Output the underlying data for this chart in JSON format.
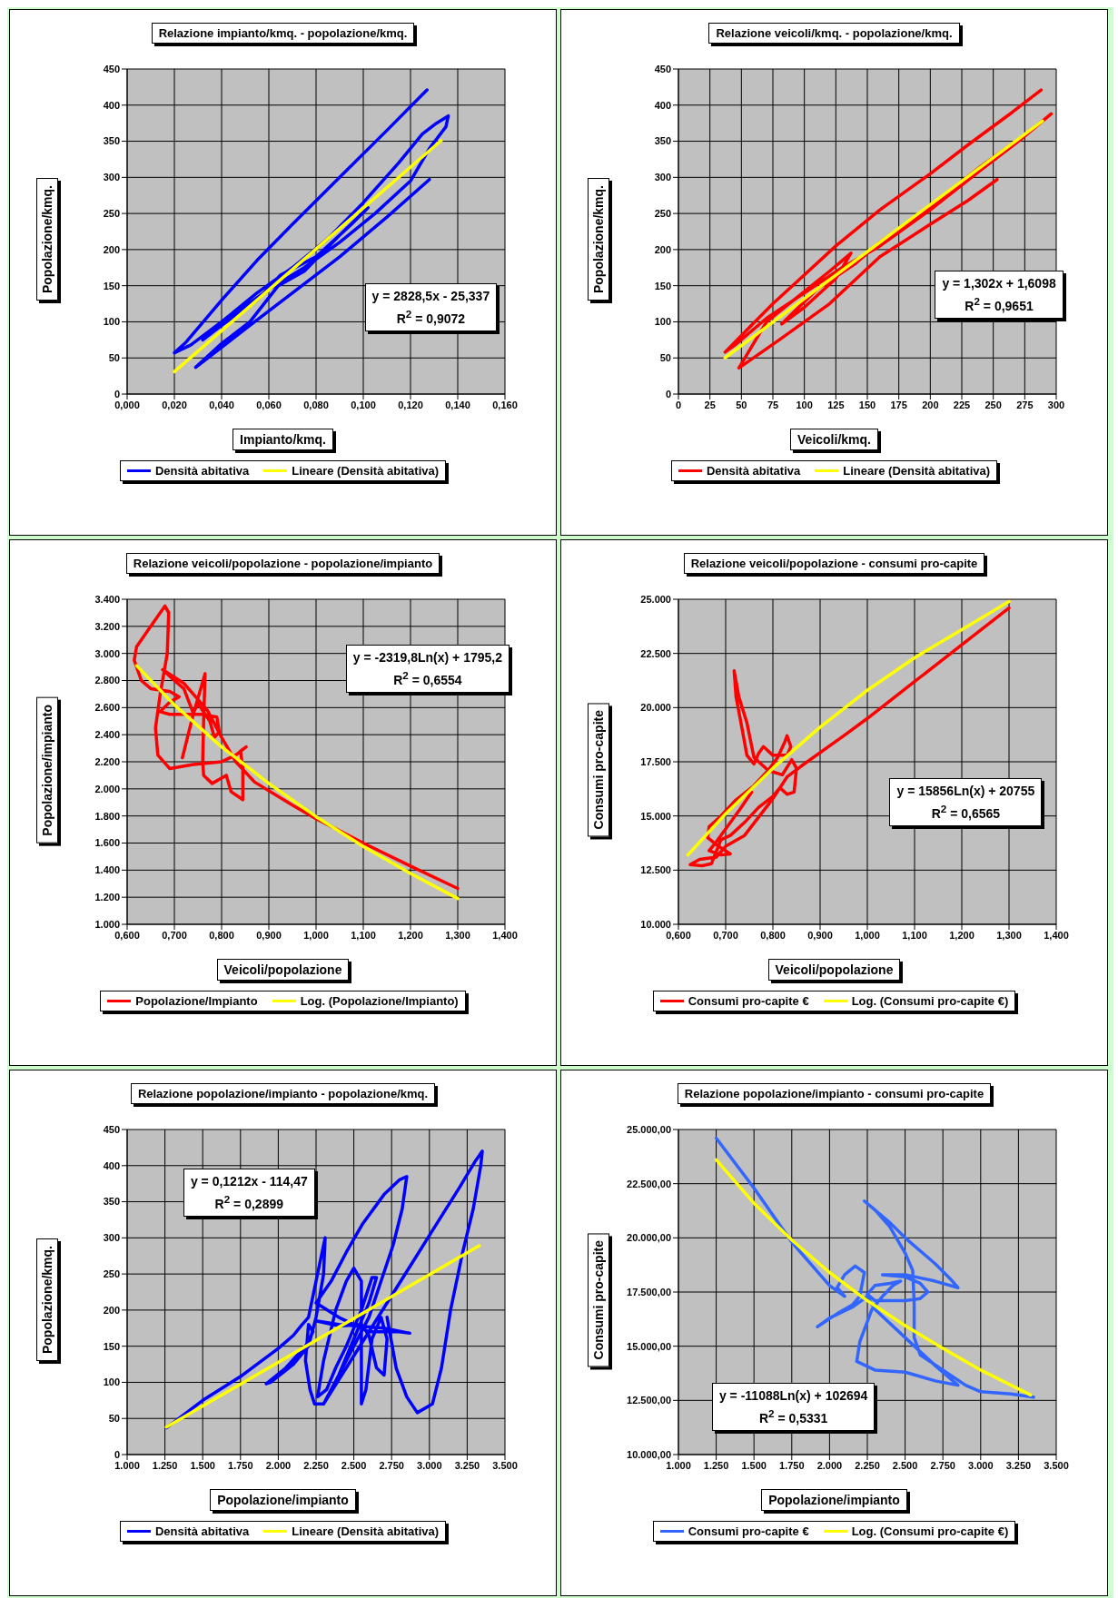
{
  "chart_data": [
    {
      "type": "line",
      "title": "Relazione impianto/kmq. - popolazione/kmq.",
      "xlabel": "Impianto/kmq.",
      "ylabel": "Popolazione/kmq.",
      "grid": true,
      "legend": "bottom",
      "marker": "none",
      "xlim": [
        0,
        0.16
      ],
      "xticks": [
        {
          "value": 0,
          "label": "0,000"
        },
        {
          "value": 0.02,
          "label": "0,020"
        },
        {
          "value": 0.04,
          "label": "0,040"
        },
        {
          "value": 0.06,
          "label": "0,060"
        },
        {
          "value": 0.08,
          "label": "0,080"
        },
        {
          "value": 0.1,
          "label": "0,100"
        },
        {
          "value": 0.12,
          "label": "0,120"
        },
        {
          "value": 0.14,
          "label": "0,140"
        },
        {
          "value": 0.16,
          "label": "0,160"
        }
      ],
      "ylim": [
        0,
        450
      ],
      "yticks": [
        0,
        50,
        100,
        150,
        200,
        250,
        300,
        350,
        400,
        450
      ],
      "annotations": [
        "y = 2828,5x - 25,337",
        "R$^{2}$ = 0,9072"
      ],
      "series": [
        {
          "name": "Densità abitativa",
          "color": "#0000ff",
          "x": [
            0.127,
            0.11,
            0.09,
            0.07,
            0.055,
            0.04,
            0.025,
            0.02,
            0.027,
            0.04,
            0.055,
            0.07,
            0.085,
            0.1,
            0.115,
            0.125,
            0.131,
            0.136,
            0.135,
            0.128,
            0.12,
            0.105,
            0.09,
            0.075,
            0.06,
            0.045,
            0.032,
            0.04,
            0.055,
            0.065,
            0.08,
            0.095,
            0.102,
            0.09,
            0.075,
            0.064,
            0.052,
            0.04,
            0.029,
            0.05,
            0.07,
            0.09,
            0.11,
            0.128
          ],
          "values": [
            421,
            365,
            300,
            235,
            185,
            130,
            72,
            57,
            68,
            100,
            140,
            175,
            215,
            265,
            320,
            360,
            375,
            385,
            370,
            340,
            295,
            250,
            210,
            175,
            145,
            110,
            75,
            95,
            130,
            165,
            190,
            235,
            258,
            220,
            170,
            150,
            100,
            70,
            37,
            90,
            140,
            190,
            245,
            297
          ]
        },
        {
          "name": "Lineare (Densità abitativa)",
          "color": "#ffff00",
          "x": [
            0.02,
            0.133
          ],
          "values": [
            31,
            351
          ]
        }
      ]
    },
    {
      "type": "line",
      "title": "Relazione veicoli/kmq. - popolazione/kmq.",
      "xlabel": "Veicoli/kmq.",
      "ylabel": "Popolazione/kmq.",
      "grid": true,
      "legend": "bottom",
      "marker": "none",
      "xlim": [
        0,
        300
      ],
      "xticks": [
        0,
        25,
        50,
        75,
        100,
        125,
        150,
        175,
        200,
        225,
        250,
        275,
        300
      ],
      "ylim": [
        0,
        450
      ],
      "yticks": [
        0,
        50,
        100,
        150,
        200,
        250,
        300,
        350,
        400,
        450
      ],
      "annotations": [
        "y = 1,302x + 1,6098",
        "R$^{2}$ = 0,9651"
      ],
      "series": [
        {
          "name": "Densità abitativa",
          "color": "#ff0000",
          "x": [
            288,
            265,
            230,
            200,
            160,
            125,
            100,
            75,
            55,
            37,
            45,
            70,
            100,
            130,
            160,
            200,
            240,
            270,
            296,
            280,
            240,
            200,
            160,
            140,
            110,
            82,
            100,
            125,
            137,
            120,
            95,
            70,
            48,
            80,
            120,
            160,
            200,
            230,
            253
          ],
          "values": [
            421,
            390,
            345,
            305,
            255,
            205,
            165,
            125,
            90,
            58,
            68,
            105,
            140,
            175,
            205,
            255,
            310,
            350,
            388,
            365,
            315,
            260,
            210,
            180,
            145,
            97,
            120,
            160,
            195,
            170,
            135,
            100,
            36,
            75,
            125,
            190,
            235,
            268,
            297
          ]
        },
        {
          "name": "Lineare (Densità abitativa)",
          "color": "#ffff00",
          "x": [
            37,
            289
          ],
          "values": [
            50,
            378
          ]
        }
      ]
    },
    {
      "type": "line",
      "title": "Relazione veicoli/popolazione - popolazione/impianto",
      "xlabel": "Veicoli/popolazione",
      "ylabel": "Popolazione/impianto",
      "grid": true,
      "legend": "bottom",
      "marker": "none",
      "xlim": [
        0.6,
        1.4
      ],
      "xticks": [
        {
          "value": 0.6,
          "label": "0,600"
        },
        {
          "value": 0.7,
          "label": "0,700"
        },
        {
          "value": 0.8,
          "label": "0,800"
        },
        {
          "value": 0.9,
          "label": "0,900"
        },
        {
          "value": 1.0,
          "label": "1,000"
        },
        {
          "value": 1.1,
          "label": "1,100"
        },
        {
          "value": 1.2,
          "label": "1,200"
        },
        {
          "value": 1.3,
          "label": "1,300"
        },
        {
          "value": 1.4,
          "label": "1,400"
        }
      ],
      "ylim": [
        1000,
        3400
      ],
      "yticks": [
        {
          "value": 1000,
          "label": "1.000"
        },
        {
          "value": 1200,
          "label": "1.200"
        },
        {
          "value": 1400,
          "label": "1.400"
        },
        {
          "value": 1600,
          "label": "1.600"
        },
        {
          "value": 1800,
          "label": "1.800"
        },
        {
          "value": 2000,
          "label": "2.000"
        },
        {
          "value": 2200,
          "label": "2.200"
        },
        {
          "value": 2400,
          "label": "2.400"
        },
        {
          "value": 2600,
          "label": "2.600"
        },
        {
          "value": 2800,
          "label": "2.800"
        },
        {
          "value": 3000,
          "label": "3.000"
        },
        {
          "value": 3200,
          "label": "3.200"
        },
        {
          "value": 3400,
          "label": "3.400"
        }
      ],
      "annotations": [
        "y = -2319,8Ln(x) + 1795,2",
        "R$^{2}$ = 0,6554"
      ],
      "series": [
        {
          "name": "Popolazione/Impianto",
          "color": "#ff0000",
          "x": [
            0.717,
            0.74,
            0.765,
            0.762,
            0.76,
            0.762,
            0.78,
            0.81,
            0.82,
            0.845,
            0.845,
            0.84,
            0.852,
            0.83,
            0.8,
            0.74,
            0.69,
            0.665,
            0.66,
            0.67,
            0.685,
            0.688,
            0.68,
            0.65,
            0.62,
            0.615,
            0.63,
            0.65,
            0.69,
            0.71,
            0.69,
            0.67,
            0.69,
            0.76,
            0.79,
            0.795,
            0.785,
            0.775,
            0.75,
            0.74,
            0.72,
            0.7,
            0.675,
            0.72,
            0.77,
            0.8,
            0.83,
            0.87,
            0.95,
            1.0,
            1.1,
            1.2,
            1.3
          ],
          "values": [
            2230,
            2550,
            2850,
            2500,
            2200,
            2100,
            2040,
            2100,
            1980,
            1920,
            2150,
            2280,
            2310,
            2250,
            2200,
            2180,
            2150,
            2250,
            2450,
            2700,
            3000,
            3300,
            3350,
            3200,
            3050,
            2950,
            2800,
            2740,
            2720,
            2680,
            2640,
            2570,
            2550,
            2550,
            2530,
            2420,
            2380,
            2500,
            2630,
            2560,
            2740,
            2800,
            2880,
            2780,
            2580,
            2380,
            2200,
            2050,
            1880,
            1780,
            1600,
            1430,
            1265
          ]
        },
        {
          "name": "Log. (Popolazione/Impianto)",
          "color": "#ffff00",
          "x": [
            0.62,
            0.7,
            0.8,
            0.9,
            1.0,
            1.1,
            1.2,
            1.3
          ],
          "values": [
            2910,
            2620,
            2310,
            2040,
            1795,
            1575,
            1375,
            1190
          ]
        }
      ]
    },
    {
      "type": "line",
      "title": "Relazione veicoli/popolazione - consumi pro-capite",
      "xlabel": "Veicoli/popolazione",
      "ylabel": "Consumi pro-capite",
      "grid": true,
      "legend": "bottom",
      "marker": "none",
      "xlim": [
        0.6,
        1.4
      ],
      "xticks": [
        {
          "value": 0.6,
          "label": "0,600"
        },
        {
          "value": 0.7,
          "label": "0,700"
        },
        {
          "value": 0.8,
          "label": "0,800"
        },
        {
          "value": 0.9,
          "label": "0,900"
        },
        {
          "value": 1.0,
          "label": "1,000"
        },
        {
          "value": 1.1,
          "label": "1,100"
        },
        {
          "value": 1.2,
          "label": "1,200"
        },
        {
          "value": 1.3,
          "label": "1,300"
        },
        {
          "value": 1.4,
          "label": "1,400"
        }
      ],
      "ylim": [
        10000,
        25000
      ],
      "yticks": [
        {
          "value": 10000,
          "label": "10.000"
        },
        {
          "value": 12500,
          "label": "12.500"
        },
        {
          "value": 15000,
          "label": "15.000"
        },
        {
          "value": 17500,
          "label": "17.500"
        },
        {
          "value": 20000,
          "label": "20.000"
        },
        {
          "value": 22500,
          "label": "22.500"
        },
        {
          "value": 25000,
          "label": "25.000"
        }
      ],
      "annotations": [
        "y = 15856Ln(x) + 20755",
        "R$^{2}$ = 0,6565"
      ],
      "series": [
        {
          "name": "Consumi pro-capite €",
          "color": "#ff0000",
          "x": [
            0.755,
            0.73,
            0.7,
            0.68,
            0.665,
            0.69,
            0.71,
            0.685,
            0.662,
            0.665,
            0.69,
            0.72,
            0.76,
            0.79,
            0.81,
            0.825,
            0.83,
            0.838,
            0.83,
            0.8,
            0.78,
            0.77,
            0.76,
            0.745,
            0.735,
            0.722,
            0.718,
            0.728,
            0.745,
            0.76,
            0.79,
            0.82,
            0.84,
            0.85,
            0.845,
            0.83,
            0.815,
            0.8,
            0.77,
            0.74,
            0.71,
            0.69,
            0.67,
            0.65,
            0.625,
            0.645,
            0.68,
            0.7,
            0.74,
            0.8,
            0.83,
            0.86,
            0.95,
            1.0,
            1.1,
            1.2,
            1.3
          ],
          "values": [
            16100,
            15300,
            14400,
            13800,
            13400,
            13200,
            13250,
            13600,
            14000,
            14500,
            15000,
            15700,
            16400,
            17100,
            17700,
            18400,
            18700,
            18200,
            17800,
            17800,
            18200,
            17900,
            17400,
            17800,
            19000,
            20500,
            21700,
            20500,
            19300,
            17700,
            17100,
            16900,
            17600,
            17200,
            16100,
            16000,
            16300,
            15900,
            15400,
            14700,
            14100,
            13900,
            12800,
            12700,
            12750,
            13000,
            13100,
            13600,
            14100,
            15800,
            16800,
            17300,
            18700,
            19500,
            21200,
            22900,
            24600
          ]
        },
        {
          "name": "Log. (Consumi pro-capite €)",
          "color": "#ffff00",
          "x": [
            0.62,
            0.7,
            0.8,
            0.9,
            1.0,
            1.1,
            1.2,
            1.3
          ],
          "values": [
            13200,
            15100,
            17200,
            19100,
            20800,
            22300,
            23600,
            24900
          ]
        }
      ]
    },
    {
      "type": "line",
      "title": "Relazione popolazione/impianto - popolazione/kmq.",
      "xlabel": "Popolazione/impianto",
      "ylabel": "Popolazione/kmq.",
      "grid": true,
      "legend": "bottom",
      "marker": "none",
      "xlim": [
        1000,
        3500
      ],
      "xticks": [
        {
          "value": 1000,
          "label": "1.000"
        },
        {
          "value": 1250,
          "label": "1.250"
        },
        {
          "value": 1500,
          "label": "1.500"
        },
        {
          "value": 1750,
          "label": "1.750"
        },
        {
          "value": 2000,
          "label": "2.000"
        },
        {
          "value": 2250,
          "label": "2.250"
        },
        {
          "value": 2500,
          "label": "2.500"
        },
        {
          "value": 2750,
          "label": "2.750"
        },
        {
          "value": 3000,
          "label": "3.000"
        },
        {
          "value": 3250,
          "label": "3.250"
        },
        {
          "value": 3500,
          "label": "3.500"
        }
      ],
      "ylim": [
        0,
        450
      ],
      "yticks": [
        0,
        50,
        100,
        150,
        200,
        250,
        300,
        350,
        400,
        450
      ],
      "annotations": [
        "y = 0,1212x - 114,47",
        "R$^{2}$ = 0,2899"
      ],
      "series": [
        {
          "name": "Densità abitativa",
          "color": "#0000ff",
          "x": [
            1260,
            1500,
            1750,
            2000,
            2100,
            2150,
            2200,
            2270,
            2310,
            2300,
            2250,
            2200,
            2100,
            1950,
            1920,
            2050,
            2180,
            2230,
            2200,
            2180,
            2210,
            2240,
            2300,
            2400,
            2500,
            2600,
            2650,
            2620,
            2550,
            2450,
            2380,
            2320,
            2260,
            2300,
            2380,
            2450,
            2500,
            2550,
            2550,
            2550,
            2580,
            2620,
            2680,
            2720,
            2700,
            2650,
            2600,
            2550,
            2400,
            2250,
            2400,
            2700,
            2870,
            2800,
            2600,
            2400,
            2250,
            2350,
            2450,
            2560,
            2700,
            2800,
            2850,
            2820,
            2760,
            2680,
            2600,
            2500,
            2400,
            2300,
            2450,
            2600,
            2750,
            2900,
            3050,
            3200,
            3300,
            3350,
            3340,
            3290,
            3220,
            3140,
            3080,
            3020,
            2920,
            2850,
            2780,
            2720
          ],
          "values": [
            37,
            75,
            108,
            147,
            165,
            178,
            190,
            260,
            300,
            250,
            190,
            150,
            125,
            100,
            98,
            120,
            150,
            170,
            180,
            130,
            90,
            70,
            70,
            110,
            160,
            210,
            245,
            245,
            200,
            150,
            120,
            90,
            80,
            130,
            200,
            240,
            258,
            240,
            150,
            70,
            90,
            160,
            190,
            160,
            110,
            120,
            165,
            180,
            178,
            185,
            180,
            175,
            168,
            170,
            170,
            190,
            210,
            240,
            280,
            320,
            360,
            380,
            385,
            340,
            290,
            240,
            190,
            150,
            110,
            70,
            120,
            170,
            220,
            270,
            320,
            370,
            405,
            420,
            400,
            340,
            280,
            200,
            120,
            70,
            58,
            80,
            120,
            190
          ]
        },
        {
          "name": "Lineare (Densità abitativa)",
          "color": "#ffff00",
          "x": [
            1260,
            3330
          ],
          "values": [
            38,
            289
          ]
        }
      ]
    },
    {
      "type": "line",
      "title": "Relazione popolazione/impianto - consumi pro-capite",
      "xlabel": "Popolazione/impianto",
      "ylabel": "Consumi pro-capite",
      "grid": true,
      "legend": "bottom",
      "marker": "none",
      "xlim": [
        1000,
        3500
      ],
      "xticks": [
        {
          "value": 1000,
          "label": "1.000"
        },
        {
          "value": 1250,
          "label": "1.250"
        },
        {
          "value": 1500,
          "label": "1.500"
        },
        {
          "value": 1750,
          "label": "1.750"
        },
        {
          "value": 2000,
          "label": "2.000"
        },
        {
          "value": 2250,
          "label": "2.250"
        },
        {
          "value": 2500,
          "label": "2.500"
        },
        {
          "value": 2750,
          "label": "2.750"
        },
        {
          "value": 3000,
          "label": "3.000"
        },
        {
          "value": 3250,
          "label": "3.250"
        },
        {
          "value": 3500,
          "label": "3.500"
        }
      ],
      "ylim": [
        10000,
        25000
      ],
      "yticks": [
        {
          "value": 10000,
          "label": "10.000,00"
        },
        {
          "value": 12500,
          "label": "12.500,00"
        },
        {
          "value": 15000,
          "label": "15.000,00"
        },
        {
          "value": 17500,
          "label": "17.500,00"
        },
        {
          "value": 20000,
          "label": "20.000,00"
        },
        {
          "value": 22500,
          "label": "22.500,00"
        },
        {
          "value": 25000,
          "label": "25.000,00"
        }
      ],
      "annotations": [
        "y = -11088Ln(x) + 102694",
        "R$^{2}$ = 0,5331"
      ],
      "series": [
        {
          "name": "Consumi pro-capite €",
          "color": "#3366ff",
          "x": [
            1250,
            1500,
            1750,
            2000,
            2100,
            2050,
            2100,
            2170,
            2230,
            2200,
            2150,
            2050,
            1920,
            2000,
            2150,
            2250,
            2300,
            2500,
            2700,
            2850,
            2700,
            2500,
            2300,
            2180,
            2200,
            2280,
            2350,
            2420,
            2470,
            2400,
            2300,
            2250,
            2300,
            2500,
            2600,
            2650,
            2600,
            2500,
            2350,
            2500,
            2700,
            2850,
            2800,
            2700,
            2500,
            2400,
            2230,
            2300,
            2400,
            2500,
            2550,
            2560,
            2560,
            2600,
            2750,
            2900,
            3000,
            3200,
            3350
          ],
          "values": [
            24600,
            22300,
            19800,
            17800,
            17300,
            17700,
            18300,
            18700,
            18400,
            17300,
            16900,
            16500,
            15900,
            16300,
            16800,
            17300,
            16700,
            15400,
            14100,
            13200,
            13400,
            13800,
            13900,
            14300,
            15200,
            16700,
            17300,
            17800,
            18000,
            17900,
            17800,
            17400,
            17100,
            17100,
            17200,
            17500,
            17900,
            18200,
            18300,
            18300,
            18000,
            17700,
            18100,
            18800,
            20000,
            20700,
            21700,
            21300,
            20500,
            19300,
            18500,
            17000,
            15400,
            14600,
            13900,
            13200,
            12900,
            12800,
            12650
          ]
        },
        {
          "name": "Log. (Consumi pro-capite €)",
          "color": "#ffff00",
          "x": [
            1250,
            1500,
            1750,
            2000,
            2250,
            2500,
            2750,
            3000,
            3330
          ],
          "values": [
            23600,
            21600,
            19900,
            18400,
            17100,
            15950,
            14900,
            13900,
            12750
          ]
        }
      ]
    }
  ]
}
